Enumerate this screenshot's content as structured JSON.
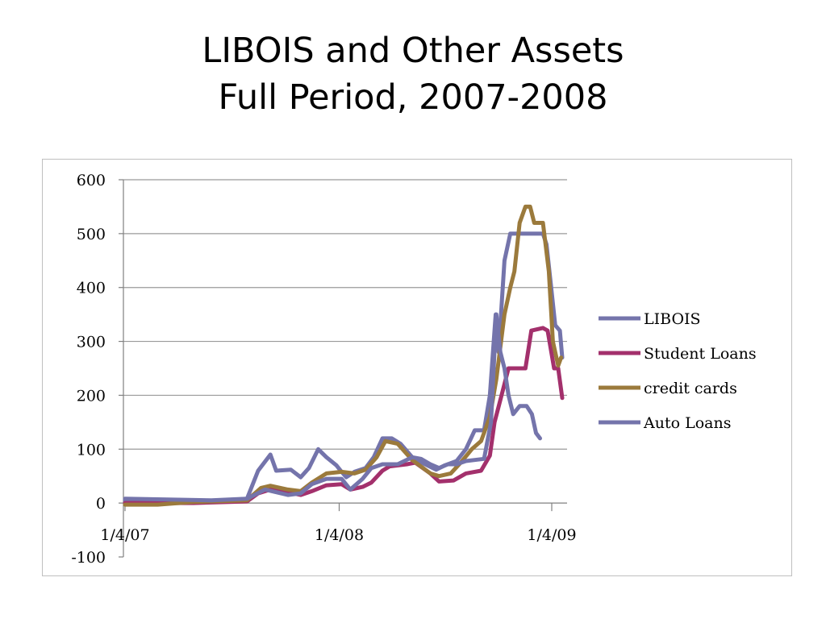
{
  "slide": {
    "title_line1": "LIBOIS and Other Assets",
    "title_line2": "Full Period, 2007-2008"
  },
  "chart_data": {
    "type": "line",
    "title": "LIBOIS and Other Assets Full Period, 2007-2008",
    "xlabel": "",
    "ylabel": "",
    "x_ticks": [
      "1/4/07",
      "1/4/08",
      "1/4/09"
    ],
    "y_ticks": [
      "600",
      "500",
      "400",
      "300",
      "200",
      "100",
      "0",
      "-100"
    ],
    "ylim": [
      -100,
      600
    ],
    "grid": true,
    "legend_position": "right",
    "series": [
      {
        "name": "LIBOIS",
        "color": "#7474ab",
        "points": [
          [
            "2007-01-04",
            5
          ],
          [
            "2007-04-01",
            4
          ],
          [
            "2007-07-01",
            5
          ],
          [
            "2007-08-01",
            8
          ],
          [
            "2007-08-20",
            60
          ],
          [
            "2007-09-10",
            90
          ],
          [
            "2007-09-20",
            60
          ],
          [
            "2007-10-15",
            62
          ],
          [
            "2007-11-01",
            48
          ],
          [
            "2007-11-15",
            65
          ],
          [
            "2007-12-01",
            100
          ],
          [
            "2007-12-15",
            85
          ],
          [
            "2008-01-01",
            70
          ],
          [
            "2008-01-10",
            58
          ],
          [
            "2008-01-18",
            48
          ],
          [
            "2008-02-01",
            58
          ],
          [
            "2008-02-20",
            65
          ],
          [
            "2008-03-05",
            85
          ],
          [
            "2008-03-20",
            120
          ],
          [
            "2008-04-05",
            120
          ],
          [
            "2008-04-20",
            110
          ],
          [
            "2008-05-10",
            85
          ],
          [
            "2008-06-01",
            72
          ],
          [
            "2008-06-20",
            62
          ],
          [
            "2008-07-05",
            70
          ],
          [
            "2008-07-25",
            78
          ],
          [
            "2008-08-10",
            100
          ],
          [
            "2008-08-25",
            135
          ],
          [
            "2008-09-10",
            135
          ],
          [
            "2008-09-20",
            200
          ],
          [
            "2008-09-30",
            350
          ],
          [
            "2008-10-05",
            280
          ],
          [
            "2008-10-15",
            450
          ],
          [
            "2008-10-25",
            500
          ],
          [
            "2008-11-15",
            500
          ],
          [
            "2008-12-20",
            500
          ],
          [
            "2008-12-26",
            480
          ],
          [
            "2009-01-03",
            400
          ],
          [
            "2009-01-10",
            330
          ],
          [
            "2009-01-18",
            320
          ],
          [
            "2009-01-22",
            270
          ]
        ]
      },
      {
        "name": "Student Loans",
        "color": "#a3306c",
        "points": [
          [
            "2007-01-04",
            0
          ],
          [
            "2007-05-01",
            0
          ],
          [
            "2007-08-01",
            3
          ],
          [
            "2007-08-20",
            18
          ],
          [
            "2007-09-10",
            25
          ],
          [
            "2007-10-10",
            20
          ],
          [
            "2007-11-01",
            15
          ],
          [
            "2007-11-20",
            22
          ],
          [
            "2007-12-15",
            33
          ],
          [
            "2008-01-10",
            35
          ],
          [
            "2008-01-25",
            25
          ],
          [
            "2008-02-15",
            30
          ],
          [
            "2008-03-01",
            38
          ],
          [
            "2008-03-20",
            60
          ],
          [
            "2008-04-01",
            68
          ],
          [
            "2008-05-01",
            72
          ],
          [
            "2008-05-15",
            75
          ],
          [
            "2008-06-10",
            55
          ],
          [
            "2008-06-25",
            40
          ],
          [
            "2008-07-20",
            42
          ],
          [
            "2008-08-10",
            55
          ],
          [
            "2008-09-05",
            60
          ],
          [
            "2008-09-20",
            88
          ],
          [
            "2008-09-28",
            150
          ],
          [
            "2008-10-10",
            200
          ],
          [
            "2008-10-22",
            250
          ],
          [
            "2008-11-20",
            250
          ],
          [
            "2008-11-30",
            320
          ],
          [
            "2008-12-20",
            325
          ],
          [
            "2008-12-28",
            320
          ],
          [
            "2009-01-08",
            250
          ],
          [
            "2009-01-15",
            250
          ],
          [
            "2009-01-22",
            195
          ]
        ]
      },
      {
        "name": "credit cards",
        "color": "#9b7a3c",
        "points": [
          [
            "2007-01-04",
            -3
          ],
          [
            "2007-03-01",
            -3
          ],
          [
            "2007-05-01",
            2
          ],
          [
            "2007-08-01",
            5
          ],
          [
            "2007-08-25",
            28
          ],
          [
            "2007-09-10",
            32
          ],
          [
            "2007-10-10",
            25
          ],
          [
            "2007-11-01",
            22
          ],
          [
            "2007-11-20",
            38
          ],
          [
            "2007-12-15",
            55
          ],
          [
            "2008-01-10",
            58
          ],
          [
            "2008-02-01",
            55
          ],
          [
            "2008-02-20",
            62
          ],
          [
            "2008-03-10",
            85
          ],
          [
            "2008-03-25",
            115
          ],
          [
            "2008-04-15",
            110
          ],
          [
            "2008-05-10",
            80
          ],
          [
            "2008-06-10",
            55
          ],
          [
            "2008-06-25",
            50
          ],
          [
            "2008-07-15",
            55
          ],
          [
            "2008-08-01",
            75
          ],
          [
            "2008-08-20",
            100
          ],
          [
            "2008-09-05",
            115
          ],
          [
            "2008-09-20",
            160
          ],
          [
            "2008-10-01",
            230
          ],
          [
            "2008-10-15",
            350
          ],
          [
            "2008-10-25",
            400
          ],
          [
            "2008-11-01",
            430
          ],
          [
            "2008-11-10",
            520
          ],
          [
            "2008-11-20",
            550
          ],
          [
            "2008-11-28",
            550
          ],
          [
            "2008-12-05",
            520
          ],
          [
            "2008-12-20",
            520
          ],
          [
            "2008-12-30",
            430
          ],
          [
            "2009-01-06",
            300
          ],
          [
            "2009-01-15",
            255
          ],
          [
            "2009-01-20",
            270
          ]
        ]
      },
      {
        "name": "Auto Loans",
        "color": "#7474ab",
        "points": [
          [
            "2007-01-04",
            8
          ],
          [
            "2007-06-01",
            5
          ],
          [
            "2007-08-01",
            8
          ],
          [
            "2007-09-01",
            25
          ],
          [
            "2007-10-10",
            15
          ],
          [
            "2007-11-01",
            18
          ],
          [
            "2007-11-20",
            35
          ],
          [
            "2007-12-15",
            45
          ],
          [
            "2008-01-10",
            45
          ],
          [
            "2008-01-25",
            25
          ],
          [
            "2008-02-15",
            45
          ],
          [
            "2008-03-01",
            65
          ],
          [
            "2008-03-20",
            72
          ],
          [
            "2008-04-15",
            72
          ],
          [
            "2008-05-10",
            85
          ],
          [
            "2008-05-25",
            82
          ],
          [
            "2008-06-10",
            72
          ],
          [
            "2008-06-25",
            65
          ],
          [
            "2008-07-10",
            72
          ],
          [
            "2008-07-25",
            72
          ],
          [
            "2008-08-10",
            78
          ],
          [
            "2008-08-25",
            80
          ],
          [
            "2008-09-10",
            82
          ],
          [
            "2008-09-22",
            150
          ],
          [
            "2008-10-01",
            350
          ],
          [
            "2008-10-08",
            280
          ],
          [
            "2008-10-15",
            250
          ],
          [
            "2008-10-22",
            200
          ],
          [
            "2008-10-30",
            165
          ],
          [
            "2008-11-10",
            180
          ],
          [
            "2008-11-22",
            180
          ],
          [
            "2008-12-01",
            165
          ],
          [
            "2008-12-08",
            130
          ],
          [
            "2008-12-15",
            120
          ]
        ]
      }
    ]
  }
}
